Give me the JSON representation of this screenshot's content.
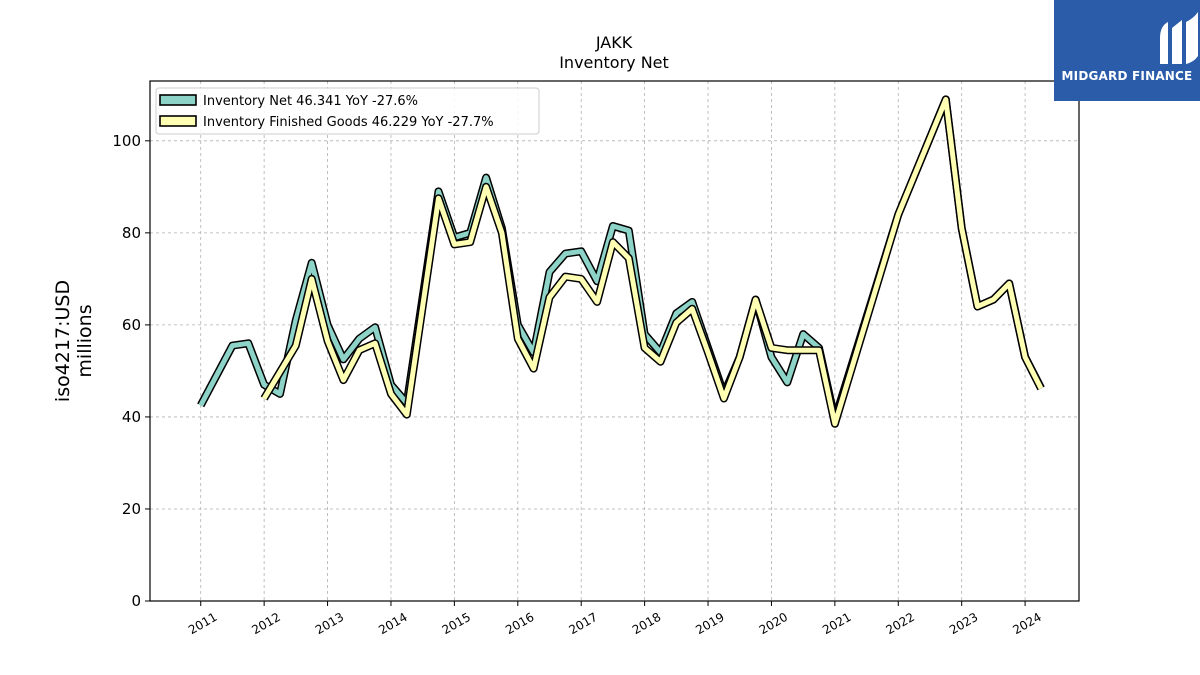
{
  "brand": {
    "name": "MIDGARD FINANCE",
    "bg_color": "#2a5caa"
  },
  "chart_data": {
    "type": "line",
    "title": "JAKK",
    "subtitle": "Inventory Net",
    "ylabel_line1": "iso4217:USD",
    "ylabel_line2": "millions",
    "xlabel": "",
    "ylim": [
      0,
      113
    ],
    "xlim": [
      2010.2,
      2024.85
    ],
    "yticks": [
      0,
      20,
      40,
      60,
      80,
      100
    ],
    "xticks": [
      2011,
      2012,
      2013,
      2014,
      2015,
      2016,
      2017,
      2018,
      2019,
      2020,
      2021,
      2022,
      2023,
      2024
    ],
    "grid": true,
    "legend_position": "top-left",
    "series": [
      {
        "name": "Inventory Net  46.341 YoY -27.6%",
        "color": "#8dd3c7",
        "points": [
          [
            2011.0,
            42.5
          ],
          [
            2011.5,
            55.5
          ],
          [
            2011.75,
            56.0
          ],
          [
            2012.0,
            47.0
          ],
          [
            2012.25,
            45.0
          ],
          [
            2012.5,
            61.0
          ],
          [
            2012.75,
            73.5
          ],
          [
            2013.0,
            60.0
          ],
          [
            2013.25,
            52.5
          ],
          [
            2013.5,
            57.0
          ],
          [
            2013.75,
            59.5
          ],
          [
            2014.0,
            47.0
          ],
          [
            2014.25,
            43.0
          ],
          [
            2014.75,
            89.0
          ],
          [
            2015.0,
            79.0
          ],
          [
            2015.25,
            80.0
          ],
          [
            2015.5,
            92.0
          ],
          [
            2015.75,
            81.0
          ],
          [
            2016.0,
            60.0
          ],
          [
            2016.25,
            54.0
          ],
          [
            2016.5,
            71.5
          ],
          [
            2016.75,
            75.5
          ],
          [
            2017.0,
            76.0
          ],
          [
            2017.25,
            69.5
          ],
          [
            2017.5,
            81.5
          ],
          [
            2017.75,
            80.5
          ],
          [
            2018.0,
            58.0
          ],
          [
            2018.25,
            54.0
          ],
          [
            2018.5,
            62.5
          ],
          [
            2018.75,
            65.0
          ],
          [
            2019.0,
            55.0
          ],
          [
            2019.25,
            45.0
          ],
          [
            2019.5,
            53.0
          ],
          [
            2019.75,
            65.5
          ],
          [
            2020.0,
            53.0
          ],
          [
            2020.25,
            47.5
          ],
          [
            2020.5,
            58.0
          ],
          [
            2020.75,
            55.0
          ],
          [
            2021.0,
            39.5
          ],
          [
            2022.0,
            84.0
          ],
          [
            2022.75,
            109.0
          ],
          [
            2023.0,
            81.0
          ],
          [
            2023.25,
            64.0
          ],
          [
            2023.5,
            65.5
          ],
          [
            2023.75,
            69.0
          ],
          [
            2024.0,
            53.0
          ],
          [
            2024.25,
            46.3
          ]
        ]
      },
      {
        "name": "Inventory Finished Goods  46.229 YoY -27.7%",
        "color": "#ffffb3",
        "points": [
          [
            2012.0,
            44.0
          ],
          [
            2012.5,
            55.5
          ],
          [
            2012.75,
            70.0
          ],
          [
            2013.0,
            56.5
          ],
          [
            2013.25,
            48.0
          ],
          [
            2013.5,
            54.5
          ],
          [
            2013.75,
            56.0
          ],
          [
            2014.0,
            45.0
          ],
          [
            2014.25,
            40.5
          ],
          [
            2014.75,
            87.5
          ],
          [
            2015.0,
            77.5
          ],
          [
            2015.25,
            78.0
          ],
          [
            2015.5,
            90.0
          ],
          [
            2015.75,
            80.0
          ],
          [
            2016.0,
            57.0
          ],
          [
            2016.25,
            50.5
          ],
          [
            2016.5,
            66.0
          ],
          [
            2016.75,
            70.5
          ],
          [
            2017.0,
            70.0
          ],
          [
            2017.25,
            65.0
          ],
          [
            2017.5,
            78.0
          ],
          [
            2017.75,
            74.5
          ],
          [
            2018.0,
            55.0
          ],
          [
            2018.25,
            52.0
          ],
          [
            2018.5,
            60.5
          ],
          [
            2018.75,
            63.5
          ],
          [
            2019.0,
            54.0
          ],
          [
            2019.25,
            44.0
          ],
          [
            2019.5,
            53.0
          ],
          [
            2019.75,
            65.5
          ],
          [
            2020.0,
            55.0
          ],
          [
            2020.25,
            54.5
          ],
          [
            2020.5,
            54.5
          ],
          [
            2020.75,
            54.5
          ],
          [
            2021.0,
            38.5
          ],
          [
            2022.0,
            84.0
          ],
          [
            2022.75,
            109.0
          ],
          [
            2023.0,
            81.0
          ],
          [
            2023.25,
            64.0
          ],
          [
            2023.5,
            65.5
          ],
          [
            2023.75,
            69.0
          ],
          [
            2024.0,
            53.0
          ],
          [
            2024.25,
            46.2
          ]
        ]
      }
    ]
  }
}
